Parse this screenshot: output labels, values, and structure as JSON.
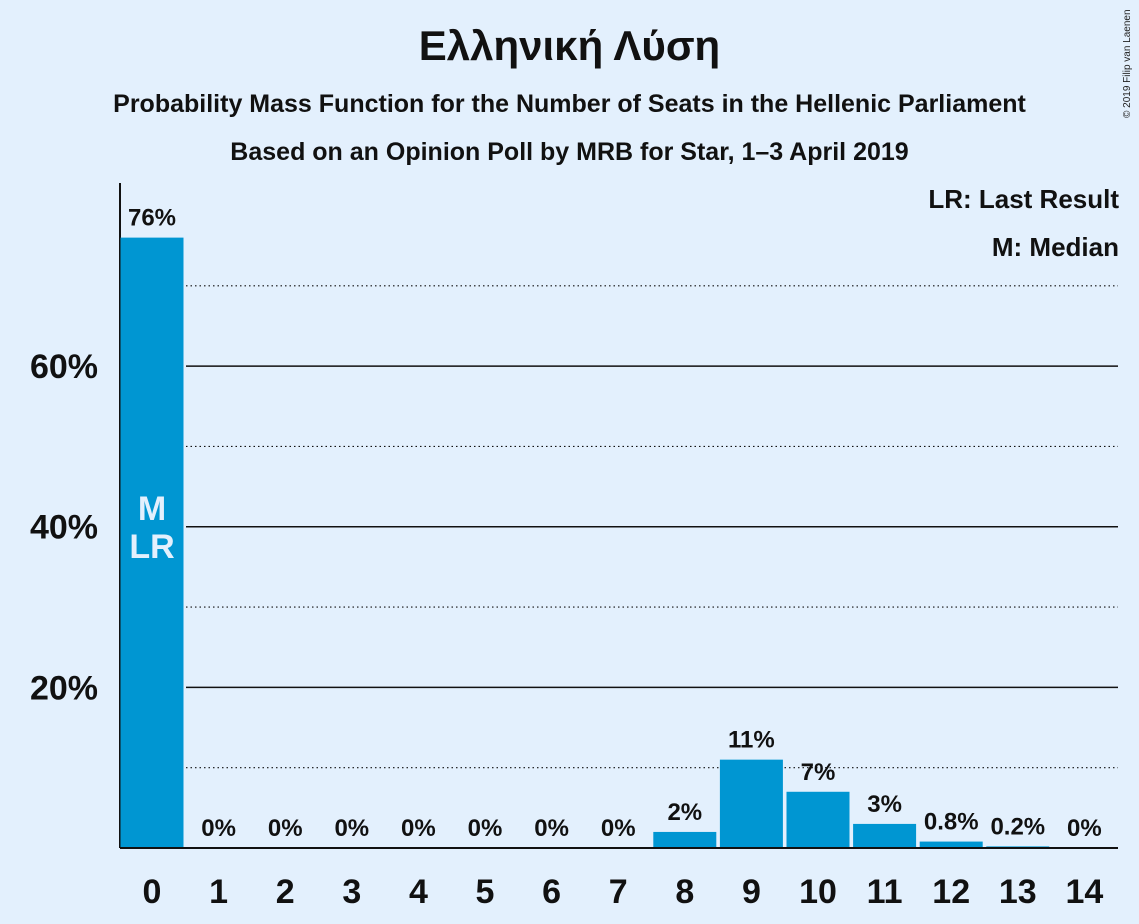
{
  "header": {
    "title": "Ελληνική Λύση",
    "subtitle": "Probability Mass Function for the Number of Seats in the Hellenic Parliament",
    "source": "Based on an Opinion Poll by MRB for Star, 1–3 April 2019",
    "copyright": "© 2019 Filip van Laenen"
  },
  "legend": {
    "last_result": "LR: Last Result",
    "median": "M: Median"
  },
  "colors": {
    "background": "#e3f0fd",
    "bar": "#0096d2",
    "text": "#111111",
    "bar_label_inside": "#e3f0fd"
  },
  "chart_data": {
    "type": "bar",
    "categories": [
      "0",
      "1",
      "2",
      "3",
      "4",
      "5",
      "6",
      "7",
      "8",
      "9",
      "10",
      "11",
      "12",
      "13",
      "14"
    ],
    "values": [
      76,
      0,
      0,
      0,
      0,
      0,
      0,
      0,
      2,
      11,
      7,
      3,
      0.8,
      0.2,
      0
    ],
    "data_labels": [
      "76%",
      "0%",
      "0%",
      "0%",
      "0%",
      "0%",
      "0%",
      "0%",
      "2%",
      "11%",
      "7%",
      "3%",
      "0.8%",
      "0.2%",
      "0%"
    ],
    "inside_labels": {
      "category": "0",
      "lines": [
        "M",
        "LR"
      ]
    },
    "ylim": [
      0,
      82.8
    ],
    "yticks": [
      20,
      40,
      60
    ],
    "ytick_labels": [
      "20%",
      "40%",
      "60%"
    ],
    "minor_gridlines": [
      10,
      30,
      50,
      70
    ],
    "grid": true,
    "legend_position": "top-right"
  }
}
